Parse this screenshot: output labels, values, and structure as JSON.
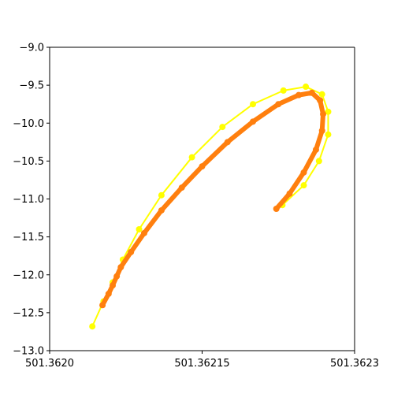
{
  "chart_data": {
    "type": "line",
    "title": "",
    "xlabel": "",
    "ylabel": "",
    "xlim": [
      501.362,
      501.3623
    ],
    "ylim": [
      -13.0,
      -9.0
    ],
    "x_ticks": [
      {
        "value": 501.362,
        "label": "501.3620"
      },
      {
        "value": 501.36215,
        "label": "501.36215"
      },
      {
        "value": 501.3623,
        "label": "501.3623"
      }
    ],
    "y_ticks": [
      {
        "value": -13.0,
        "label": "−13.0"
      },
      {
        "value": -12.5,
        "label": "−12.5"
      },
      {
        "value": -12.0,
        "label": "−12.0"
      },
      {
        "value": -11.5,
        "label": "−11.5"
      },
      {
        "value": -11.0,
        "label": "−11.0"
      },
      {
        "value": -10.5,
        "label": "−10.5"
      },
      {
        "value": -10.0,
        "label": "−10.0"
      },
      {
        "value": -9.5,
        "label": "−9.5"
      },
      {
        "value": -9.0,
        "label": "−9.0"
      }
    ],
    "grid": false,
    "series": [
      {
        "color": "#ffff00",
        "marker": "circle",
        "x": [
          501.362042,
          501.362053,
          501.362062,
          501.362072,
          501.362088,
          501.36211,
          501.36214,
          501.36217,
          501.3622,
          501.36223,
          501.362252,
          501.362268,
          501.362274,
          501.362274,
          501.362265,
          501.36225,
          501.362229
        ],
        "y": [
          -12.68,
          -12.35,
          -12.1,
          -11.8,
          -11.4,
          -10.95,
          -10.45,
          -10.05,
          -9.75,
          -9.57,
          -9.52,
          -9.62,
          -9.85,
          -10.15,
          -10.5,
          -10.82,
          -11.08
        ]
      },
      {
        "color": "#ff7f0e",
        "marker": "circle",
        "x": [
          501.362052,
          501.362058,
          501.362062,
          501.362066,
          501.36207,
          501.36208,
          501.362093,
          501.36211,
          501.36213,
          501.36215,
          501.362175,
          501.3622,
          501.362225,
          501.362245,
          501.362258,
          501.362266,
          501.362269,
          501.362268,
          501.362262,
          501.36225,
          501.362236,
          501.362223
        ],
        "y": [
          -12.4,
          -12.25,
          -12.14,
          -12.02,
          -11.9,
          -11.7,
          -11.45,
          -11.15,
          -10.85,
          -10.57,
          -10.25,
          -9.98,
          -9.75,
          -9.63,
          -9.6,
          -9.7,
          -9.88,
          -10.1,
          -10.35,
          -10.65,
          -10.93,
          -11.13
        ]
      }
    ]
  }
}
